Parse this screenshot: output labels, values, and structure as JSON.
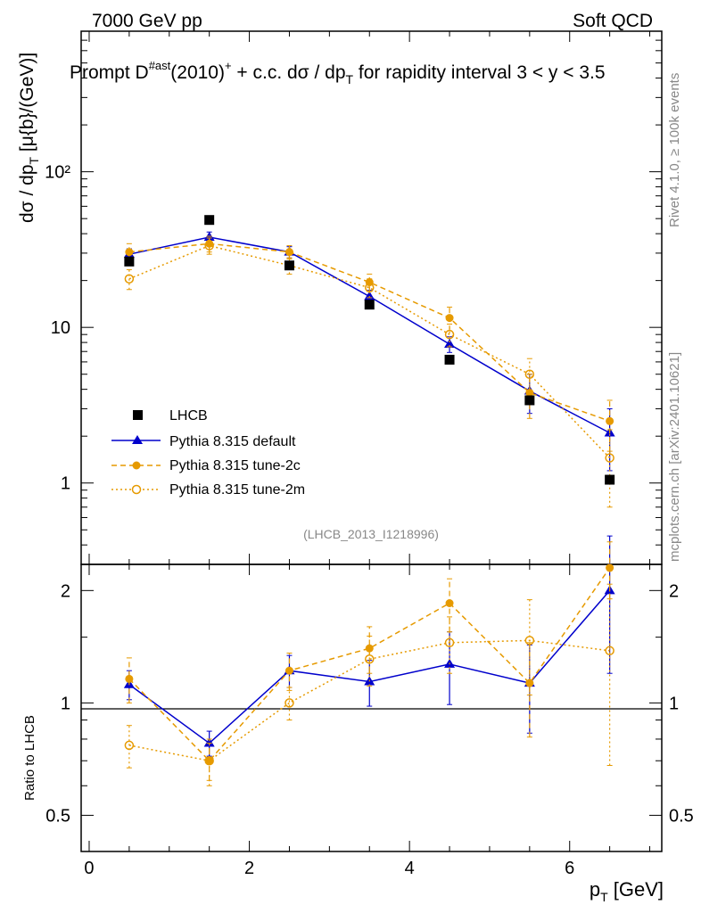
{
  "header": {
    "energy": "7000 GeV pp",
    "category": "Soft QCD",
    "title_a": "Prompt D",
    "title_sup": "#ast",
    "title_b": "(2010)",
    "title_sup2": "+",
    "title_c": " + c.c.  dσ / dp",
    "title_sub": "T",
    "title_d": " for rapidity interval 3 < y < 3.5",
    "watermark": "(LHCB_2013_I1218996)",
    "side_rivet": "Rivet 4.1.0, ≥ 100k events",
    "side_mcplots": "mcplots.cern.ch [arXiv:2401.10621]"
  },
  "colors": {
    "data": "#000000",
    "default": "#0000cc",
    "tune": "#e69a00"
  },
  "legend": {
    "lhcb": "LHCB",
    "default": "Pythia 8.315 default",
    "tune2c": "Pythia 8.315 tune-2c",
    "tune2m": "Pythia 8.315 tune-2m"
  },
  "chart_data": {
    "type": "line",
    "x": [
      0.5,
      1.5,
      2.5,
      3.5,
      4.5,
      5.5,
      6.5
    ],
    "xlim": [
      -0.1,
      7.15
    ],
    "xticks": [
      "0",
      "2",
      "4",
      "6"
    ],
    "xlabel": "p",
    "xlabel_sub": "T",
    "xlabel_unit": " [GeV]",
    "main": {
      "ylabel_a": "dσ / dp",
      "ylabel_sub": "T",
      "ylabel_b": " [μ{b}/(GeV)]",
      "yscale": "log",
      "ylim": [
        0.3,
        800
      ],
      "yticks": [
        "1",
        "10",
        "10²"
      ],
      "series": [
        {
          "name": "LHCB",
          "values": [
            26.5,
            49,
            25,
            14,
            6.2,
            3.4,
            1.05
          ]
        },
        {
          "name": "Pythia 8.315 default",
          "values": [
            29.5,
            38,
            30.5,
            15.8,
            7.8,
            3.9,
            2.1
          ],
          "err": [
            2.5,
            3,
            2.5,
            1.5,
            0.9,
            1.1,
            0.9
          ]
        },
        {
          "name": "Pythia 8.315 tune-2c",
          "values": [
            30.5,
            34.5,
            30.5,
            19.5,
            11.5,
            3.8,
            2.5
          ],
          "err": [
            4,
            4,
            3,
            2.5,
            2,
            1.2,
            0.9
          ]
        },
        {
          "name": "Pythia 8.315 tune-2m",
          "values": [
            20.5,
            33.5,
            25,
            18,
            9,
            5,
            1.45
          ],
          "err": [
            3,
            4,
            3,
            2.5,
            1.5,
            1.3,
            0.75
          ]
        }
      ]
    },
    "ratio": {
      "ylabel": "Ratio to LHCB",
      "yscale": "log",
      "ylim": [
        0.4,
        2.35
      ],
      "yticks": [
        "0.5",
        "1",
        "2"
      ],
      "series": [
        {
          "name": "Pythia 8.315 default",
          "values": [
            1.12,
            0.78,
            1.22,
            1.14,
            1.27,
            1.13,
            2.0
          ],
          "err": [
            0.1,
            0.06,
            0.12,
            0.16,
            0.28,
            0.3,
            0.8
          ]
        },
        {
          "name": "Pythia 8.315 tune-2c",
          "values": [
            1.16,
            0.7,
            1.22,
            1.4,
            1.85,
            1.13,
            2.3
          ],
          "err": [
            0.16,
            0.08,
            0.14,
            0.2,
            0.3,
            0.32,
            0.4
          ]
        },
        {
          "name": "Pythia 8.315 tune-2m",
          "values": [
            0.77,
            0.7,
            1.0,
            1.31,
            1.45,
            1.47,
            1.38
          ],
          "err": [
            0.1,
            0.1,
            0.1,
            0.2,
            0.25,
            0.42,
            0.7
          ]
        }
      ]
    }
  }
}
